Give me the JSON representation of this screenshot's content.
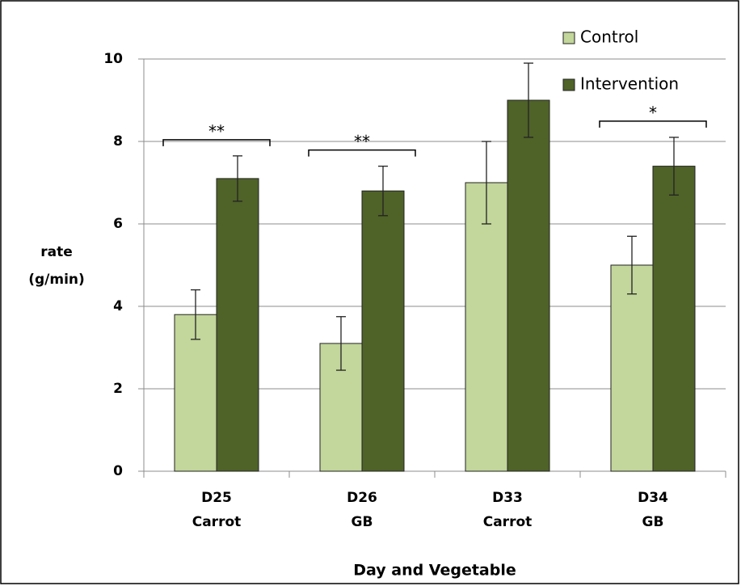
{
  "chart_data": {
    "type": "bar",
    "categories": [
      [
        "D25",
        "Carrot"
      ],
      [
        "D26",
        "GB"
      ],
      [
        "D33",
        "Carrot"
      ],
      [
        "D34",
        "GB"
      ]
    ],
    "series": [
      {
        "name": "Control",
        "color": "#c3d69b",
        "values": [
          3.8,
          3.1,
          7.0,
          5.0
        ],
        "errors": [
          0.6,
          0.65,
          1.0,
          0.7
        ]
      },
      {
        "name": "Intervention",
        "color": "#4f6228",
        "values": [
          7.1,
          6.8,
          9.0,
          7.4
        ],
        "errors": [
          0.55,
          0.6,
          0.9,
          0.7
        ]
      }
    ],
    "significance": [
      "**",
      "**",
      null,
      "*"
    ],
    "ylabel": [
      "rate",
      "(g/min)"
    ],
    "xlabel": "Day and Vegetable",
    "ylim": [
      0,
      10
    ],
    "yticks": [
      0,
      2,
      4,
      6,
      8,
      10
    ],
    "grid": true
  }
}
